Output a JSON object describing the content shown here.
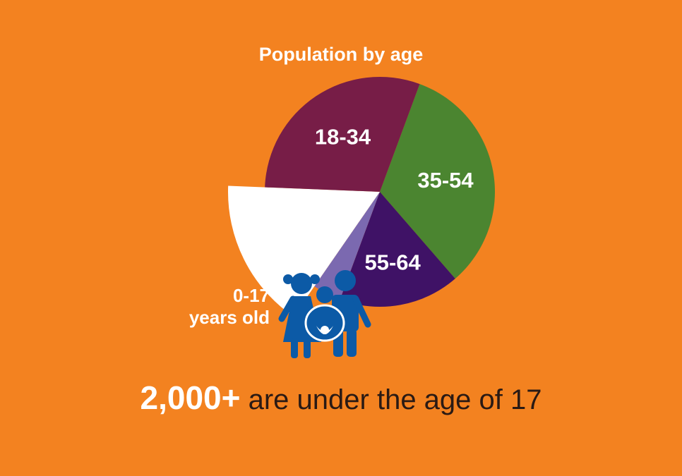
{
  "chart_data": {
    "type": "pie",
    "title": "Population by age",
    "slices": [
      {
        "label": "35-54",
        "value": 33,
        "color": "#4B8530"
      },
      {
        "label": "55-64",
        "value": 17,
        "color": "#3F1266"
      },
      {
        "label": "",
        "value": 4,
        "color": "#7B69B0"
      },
      {
        "label": "0-17 years old",
        "value": 16,
        "color": "#FFFFFF",
        "exploded": true
      },
      {
        "label": "18-34",
        "value": 30,
        "color": "#771D47"
      }
    ]
  },
  "callout": {
    "line1": "0-17",
    "line2": "years old"
  },
  "footer": {
    "highlight": "2,000+",
    "text": "are under the age of 17"
  },
  "icons": {
    "family": "family-icon"
  },
  "colors": {
    "background": "#F38220",
    "icon": "#0C5AA6"
  }
}
